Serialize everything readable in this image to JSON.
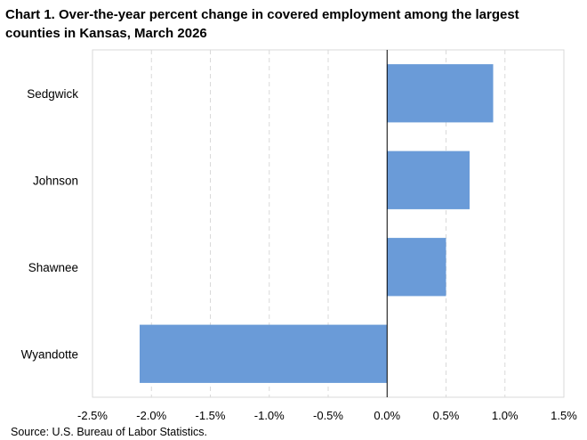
{
  "chart_data": {
    "type": "bar",
    "orientation": "horizontal",
    "title": "Chart 1. Over-the-year percent change in covered employment among the largest counties in Kansas, March 2026",
    "categories": [
      "Sedgwick",
      "Johnson",
      "Shawnee",
      "Wyandotte"
    ],
    "values": [
      0.9,
      0.7,
      0.5,
      -2.1
    ],
    "xlim": [
      -2.5,
      1.5
    ],
    "xticks": [
      -2.5,
      -2.0,
      -1.5,
      -1.0,
      -0.5,
      0.0,
      0.5,
      1.0,
      1.5
    ],
    "xtick_labels": [
      "-2.5%",
      "-2.0%",
      "-1.5%",
      "-1.0%",
      "-0.5%",
      "0.0%",
      "0.5%",
      "1.0%",
      "1.5%"
    ],
    "grid": "vertical-dashed",
    "bar_color": "#6a9bd8",
    "source": "Source: U.S. Bureau of Labor Statistics."
  }
}
